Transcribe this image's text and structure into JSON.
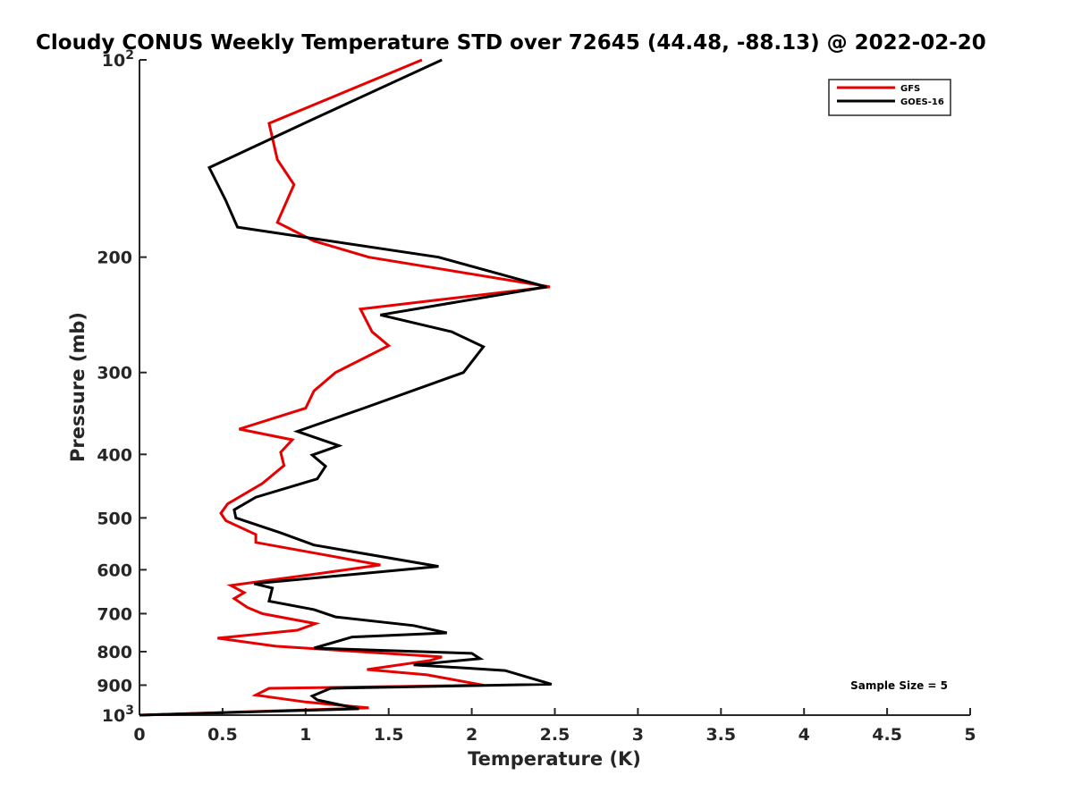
{
  "chart_data": {
    "type": "line",
    "title": "Cloudy CONUS Weekly Temperature STD over 72645 (44.48, -88.13) @ 2022-02-20",
    "xlabel": "Temperature (K)",
    "ylabel": "Pressure (mb)",
    "xlim": [
      0,
      5
    ],
    "ylim": [
      100,
      1000
    ],
    "yscale": "log",
    "y_reversed": true,
    "grid": false,
    "legend_position": "top-right",
    "x_ticks": [
      "0",
      "0.5",
      "1",
      "1.5",
      "2",
      "2.5",
      "3",
      "3.5",
      "4",
      "4.5",
      "5"
    ],
    "y_ticks": [
      {
        "value": 100,
        "base": "10",
        "exp": "2"
      },
      {
        "value": 200,
        "label": "200"
      },
      {
        "value": 300,
        "label": "300"
      },
      {
        "value": 400,
        "label": "400"
      },
      {
        "value": 500,
        "label": "500"
      },
      {
        "value": 600,
        "label": "600"
      },
      {
        "value": 700,
        "label": "700"
      },
      {
        "value": 800,
        "label": "800"
      },
      {
        "value": 900,
        "label": "900"
      },
      {
        "value": 1000,
        "base": "10",
        "exp": "3"
      }
    ],
    "annotation": "Sample Size = 5",
    "series": [
      {
        "name": "GFS",
        "color": "#e60000",
        "points": [
          [
            1.7,
            100
          ],
          [
            0.78,
            125
          ],
          [
            0.83,
            142
          ],
          [
            0.93,
            155
          ],
          [
            0.83,
            177
          ],
          [
            1.05,
            189
          ],
          [
            1.38,
            200
          ],
          [
            2.47,
            222
          ],
          [
            1.33,
            240
          ],
          [
            1.4,
            260
          ],
          [
            1.5,
            273
          ],
          [
            1.18,
            300
          ],
          [
            1.05,
            320
          ],
          [
            1.0,
            340
          ],
          [
            0.6,
            366
          ],
          [
            0.92,
            380
          ],
          [
            0.85,
            397
          ],
          [
            0.87,
            416
          ],
          [
            0.74,
            443
          ],
          [
            0.53,
            476
          ],
          [
            0.49,
            492
          ],
          [
            0.52,
            505
          ],
          [
            0.7,
            530
          ],
          [
            0.7,
            545
          ],
          [
            1.45,
            590
          ],
          [
            1.1,
            607
          ],
          [
            0.55,
            634
          ],
          [
            0.63,
            650
          ],
          [
            0.57,
            664
          ],
          [
            0.65,
            685
          ],
          [
            0.74,
            700
          ],
          [
            1.06,
            725
          ],
          [
            0.95,
            742
          ],
          [
            0.47,
            763
          ],
          [
            0.82,
            785
          ],
          [
            1.82,
            815
          ],
          [
            1.75,
            825
          ],
          [
            1.37,
            852
          ],
          [
            1.73,
            868
          ],
          [
            2.07,
            900
          ],
          [
            0.78,
            910
          ],
          [
            0.7,
            932
          ],
          [
            1.0,
            955
          ],
          [
            1.38,
            975
          ],
          [
            0.0,
            1000
          ]
        ]
      },
      {
        "name": "GOES-16",
        "color": "#000000",
        "points": [
          [
            1.82,
            100
          ],
          [
            1.05,
            123
          ],
          [
            0.42,
            146
          ],
          [
            0.52,
            164
          ],
          [
            0.59,
            180
          ],
          [
            1.8,
            200
          ],
          [
            2.45,
            222
          ],
          [
            1.45,
            245
          ],
          [
            1.88,
            260
          ],
          [
            2.07,
            274
          ],
          [
            1.95,
            300
          ],
          [
            1.35,
            340
          ],
          [
            0.95,
            369
          ],
          [
            1.2,
            388
          ],
          [
            1.04,
            401
          ],
          [
            1.12,
            417
          ],
          [
            1.07,
            436
          ],
          [
            0.7,
            465
          ],
          [
            0.57,
            486
          ],
          [
            0.58,
            500
          ],
          [
            0.85,
            527
          ],
          [
            1.05,
            550
          ],
          [
            1.8,
            593
          ],
          [
            0.69,
            630
          ],
          [
            0.8,
            640
          ],
          [
            0.78,
            670
          ],
          [
            1.05,
            690
          ],
          [
            1.18,
            708
          ],
          [
            1.65,
            730
          ],
          [
            1.85,
            749
          ],
          [
            1.28,
            760
          ],
          [
            1.05,
            790
          ],
          [
            2.0,
            805
          ],
          [
            2.05,
            820
          ],
          [
            1.65,
            838
          ],
          [
            2.2,
            855
          ],
          [
            2.48,
            897
          ],
          [
            1.15,
            910
          ],
          [
            1.04,
            935
          ],
          [
            1.07,
            948
          ],
          [
            1.32,
            978
          ],
          [
            0.0,
            1000
          ]
        ]
      }
    ]
  }
}
